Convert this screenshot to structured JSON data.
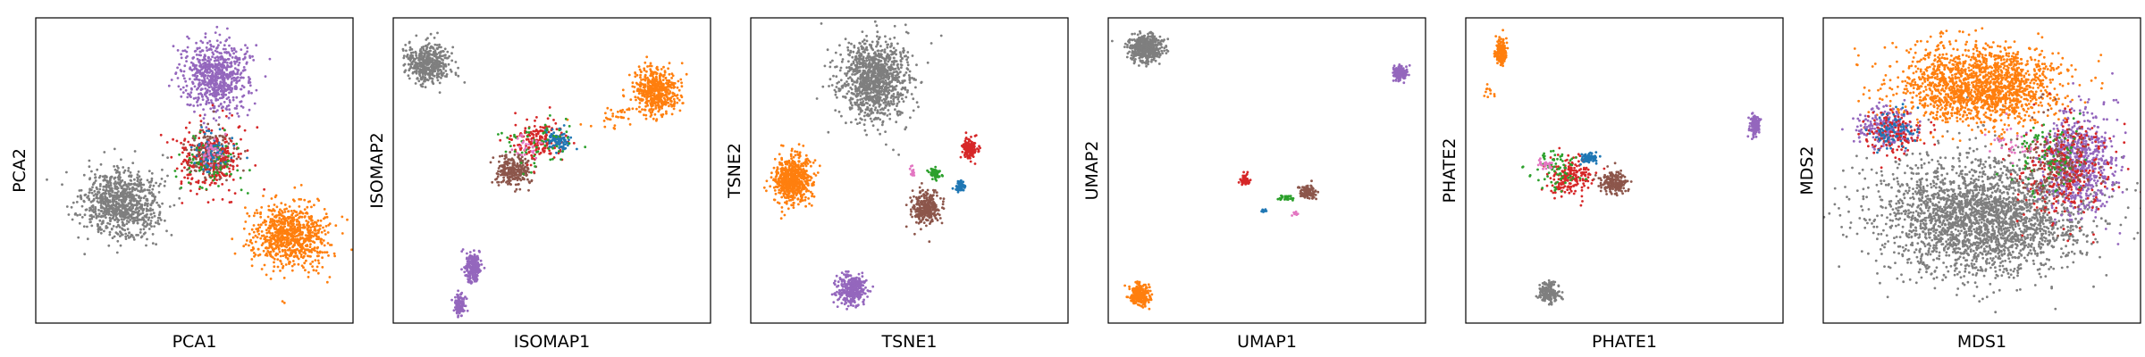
{
  "colors": {
    "blue": "#1f77b4",
    "orange": "#ff7f0e",
    "green": "#2ca02c",
    "red": "#d62728",
    "purple": "#9467bd",
    "brown": "#8c564b",
    "pink": "#e377c2",
    "gray": "#7f7f7f"
  },
  "chart_data": [
    {
      "type": "scatter",
      "xlabel": "PCA1",
      "ylabel": "PCA2",
      "grid": false,
      "ticks": false,
      "xlim": [
        0,
        1
      ],
      "ylim": [
        0,
        1
      ],
      "clusters": [
        {
          "color": "gray",
          "cx": 0.27,
          "cy": 0.39,
          "rx": 0.14,
          "ry": 0.13,
          "n": 900
        },
        {
          "color": "orange",
          "cx": 0.8,
          "cy": 0.29,
          "rx": 0.14,
          "ry": 0.13,
          "n": 800
        },
        {
          "color": "purple",
          "cx": 0.57,
          "cy": 0.81,
          "rx": 0.12,
          "ry": 0.13,
          "n": 700
        },
        {
          "color": "brown",
          "cx": 0.55,
          "cy": 0.55,
          "rx": 0.09,
          "ry": 0.09,
          "n": 250
        },
        {
          "color": "red",
          "cx": 0.55,
          "cy": 0.54,
          "rx": 0.12,
          "ry": 0.13,
          "n": 250
        },
        {
          "color": "green",
          "cx": 0.55,
          "cy": 0.52,
          "rx": 0.11,
          "ry": 0.12,
          "n": 80
        },
        {
          "color": "blue",
          "cx": 0.55,
          "cy": 0.56,
          "rx": 0.07,
          "ry": 0.07,
          "n": 70
        },
        {
          "color": "pink",
          "cx": 0.55,
          "cy": 0.56,
          "rx": 0.05,
          "ry": 0.05,
          "n": 30
        }
      ]
    },
    {
      "type": "scatter",
      "xlabel": "ISOMAP1",
      "ylabel": "ISOMAP2",
      "grid": false,
      "ticks": false,
      "xlim": [
        0,
        1
      ],
      "ylim": [
        0,
        1
      ],
      "clusters": [
        {
          "color": "gray",
          "cx": 0.11,
          "cy": 0.85,
          "rx": 0.08,
          "ry": 0.08,
          "n": 450
        },
        {
          "color": "orange",
          "cx": 0.83,
          "cy": 0.76,
          "rx": 0.08,
          "ry": 0.09,
          "n": 500
        },
        {
          "color": "orange",
          "cx": 0.7,
          "cy": 0.68,
          "rx": 0.12,
          "ry": 0.05,
          "n": 40
        },
        {
          "color": "brown",
          "cx": 0.38,
          "cy": 0.5,
          "rx": 0.07,
          "ry": 0.06,
          "n": 250
        },
        {
          "color": "red",
          "cx": 0.46,
          "cy": 0.6,
          "rx": 0.1,
          "ry": 0.07,
          "n": 200
        },
        {
          "color": "blue",
          "cx": 0.52,
          "cy": 0.6,
          "rx": 0.05,
          "ry": 0.04,
          "n": 100
        },
        {
          "color": "green",
          "cx": 0.45,
          "cy": 0.59,
          "rx": 0.12,
          "ry": 0.08,
          "n": 60
        },
        {
          "color": "pink",
          "cx": 0.42,
          "cy": 0.58,
          "rx": 0.06,
          "ry": 0.05,
          "n": 25
        },
        {
          "color": "purple",
          "cx": 0.25,
          "cy": 0.18,
          "rx": 0.03,
          "ry": 0.06,
          "n": 220
        },
        {
          "color": "purple",
          "cx": 0.21,
          "cy": 0.06,
          "rx": 0.02,
          "ry": 0.04,
          "n": 120
        }
      ]
    },
    {
      "type": "scatter",
      "xlabel": "TSNE1",
      "ylabel": "TSNE2",
      "grid": false,
      "ticks": false,
      "xlim": [
        0,
        1
      ],
      "ylim": [
        0,
        1
      ],
      "clusters": [
        {
          "color": "gray",
          "cx": 0.39,
          "cy": 0.8,
          "rx": 0.13,
          "ry": 0.16,
          "n": 1100
        },
        {
          "color": "orange",
          "cx": 0.13,
          "cy": 0.47,
          "rx": 0.07,
          "ry": 0.09,
          "n": 600
        },
        {
          "color": "purple",
          "cx": 0.32,
          "cy": 0.11,
          "rx": 0.05,
          "ry": 0.06,
          "n": 350
        },
        {
          "color": "brown",
          "cx": 0.55,
          "cy": 0.38,
          "rx": 0.05,
          "ry": 0.06,
          "n": 300
        },
        {
          "color": "red",
          "cx": 0.69,
          "cy": 0.57,
          "rx": 0.03,
          "ry": 0.04,
          "n": 150
        },
        {
          "color": "green",
          "cx": 0.58,
          "cy": 0.49,
          "rx": 0.02,
          "ry": 0.02,
          "n": 60
        },
        {
          "color": "blue",
          "cx": 0.66,
          "cy": 0.45,
          "rx": 0.02,
          "ry": 0.02,
          "n": 60
        },
        {
          "color": "pink",
          "cx": 0.51,
          "cy": 0.5,
          "rx": 0.01,
          "ry": 0.02,
          "n": 20
        }
      ]
    },
    {
      "type": "scatter",
      "xlabel": "UMAP1",
      "ylabel": "UMAP2",
      "grid": false,
      "ticks": false,
      "xlim": [
        0,
        1
      ],
      "ylim": [
        0,
        1
      ],
      "clusters": [
        {
          "color": "gray",
          "cx": 0.12,
          "cy": 0.9,
          "rx": 0.06,
          "ry": 0.05,
          "n": 500
        },
        {
          "color": "purple",
          "cx": 0.92,
          "cy": 0.82,
          "rx": 0.025,
          "ry": 0.03,
          "n": 150
        },
        {
          "color": "orange",
          "cx": 0.1,
          "cy": 0.09,
          "rx": 0.04,
          "ry": 0.04,
          "n": 250
        },
        {
          "color": "red",
          "cx": 0.43,
          "cy": 0.47,
          "rx": 0.02,
          "ry": 0.02,
          "n": 60
        },
        {
          "color": "brown",
          "cx": 0.63,
          "cy": 0.43,
          "rx": 0.03,
          "ry": 0.025,
          "n": 110
        },
        {
          "color": "green",
          "cx": 0.56,
          "cy": 0.41,
          "rx": 0.03,
          "ry": 0.01,
          "n": 30
        },
        {
          "color": "blue",
          "cx": 0.49,
          "cy": 0.37,
          "rx": 0.01,
          "ry": 0.01,
          "n": 12
        },
        {
          "color": "pink",
          "cx": 0.59,
          "cy": 0.36,
          "rx": 0.01,
          "ry": 0.01,
          "n": 10
        }
      ]
    },
    {
      "type": "scatter",
      "xlabel": "PHATE1",
      "ylabel": "PHATE2",
      "grid": false,
      "ticks": false,
      "xlim": [
        0,
        1
      ],
      "ylim": [
        0,
        1
      ],
      "clusters": [
        {
          "color": "orange",
          "cx": 0.11,
          "cy": 0.89,
          "rx": 0.02,
          "ry": 0.05,
          "n": 150
        },
        {
          "color": "orange",
          "cx": 0.07,
          "cy": 0.76,
          "rx": 0.02,
          "ry": 0.03,
          "n": 12
        },
        {
          "color": "purple",
          "cx": 0.91,
          "cy": 0.65,
          "rx": 0.02,
          "ry": 0.04,
          "n": 120
        },
        {
          "color": "gray",
          "cx": 0.26,
          "cy": 0.1,
          "rx": 0.04,
          "ry": 0.04,
          "n": 180
        },
        {
          "color": "brown",
          "cx": 0.47,
          "cy": 0.46,
          "rx": 0.05,
          "ry": 0.04,
          "n": 200
        },
        {
          "color": "red",
          "cx": 0.33,
          "cy": 0.48,
          "rx": 0.08,
          "ry": 0.07,
          "n": 200
        },
        {
          "color": "blue",
          "cx": 0.39,
          "cy": 0.54,
          "rx": 0.03,
          "ry": 0.02,
          "n": 80
        },
        {
          "color": "green",
          "cx": 0.28,
          "cy": 0.5,
          "rx": 0.09,
          "ry": 0.07,
          "n": 70
        },
        {
          "color": "pink",
          "cx": 0.25,
          "cy": 0.52,
          "rx": 0.03,
          "ry": 0.02,
          "n": 30
        }
      ]
    },
    {
      "type": "scatter",
      "xlabel": "MDS1",
      "ylabel": "MDS2",
      "grid": false,
      "ticks": false,
      "xlim": [
        0,
        1
      ],
      "ylim": [
        0,
        1
      ],
      "clusters": [
        {
          "color": "gray",
          "cx": 0.5,
          "cy": 0.35,
          "rx": 0.38,
          "ry": 0.23,
          "n": 2600
        },
        {
          "color": "orange",
          "cx": 0.49,
          "cy": 0.78,
          "rx": 0.31,
          "ry": 0.15,
          "n": 1700
        },
        {
          "color": "purple",
          "cx": 0.81,
          "cy": 0.52,
          "rx": 0.14,
          "ry": 0.19,
          "n": 700
        },
        {
          "color": "purple",
          "cx": 0.2,
          "cy": 0.64,
          "rx": 0.1,
          "ry": 0.08,
          "n": 250
        },
        {
          "color": "red",
          "cx": 0.76,
          "cy": 0.5,
          "rx": 0.17,
          "ry": 0.2,
          "n": 300
        },
        {
          "color": "red",
          "cx": 0.22,
          "cy": 0.62,
          "rx": 0.12,
          "ry": 0.09,
          "n": 150
        },
        {
          "color": "brown",
          "cx": 0.74,
          "cy": 0.52,
          "rx": 0.14,
          "ry": 0.17,
          "n": 150
        },
        {
          "color": "blue",
          "cx": 0.22,
          "cy": 0.63,
          "rx": 0.1,
          "ry": 0.08,
          "n": 80
        },
        {
          "color": "green",
          "cx": 0.7,
          "cy": 0.55,
          "rx": 0.15,
          "ry": 0.15,
          "n": 90
        },
        {
          "color": "pink",
          "cx": 0.6,
          "cy": 0.58,
          "rx": 0.1,
          "ry": 0.08,
          "n": 30
        }
      ]
    }
  ]
}
